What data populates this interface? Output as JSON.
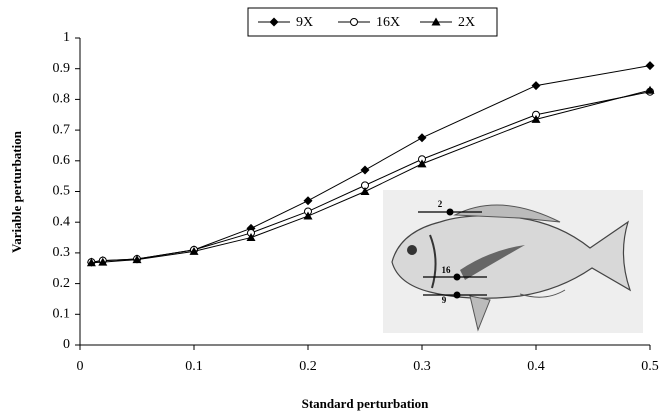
{
  "chart_data": {
    "type": "line",
    "x_label": "Standard perturbation",
    "y_label": "Variable perturbation",
    "x": [
      0.01,
      0.02,
      0.05,
      0.1,
      0.15,
      0.2,
      0.25,
      0.3,
      0.4,
      0.5
    ],
    "series": [
      {
        "name": "9X",
        "color": "#000000",
        "marker": "diamond",
        "values": [
          0.27,
          0.275,
          0.28,
          0.31,
          0.38,
          0.47,
          0.57,
          0.675,
          0.845,
          0.91
        ]
      },
      {
        "name": "16X",
        "color": "#000000",
        "marker": "circle",
        "values": [
          0.27,
          0.275,
          0.28,
          0.31,
          0.365,
          0.435,
          0.52,
          0.605,
          0.75,
          0.825
        ]
      },
      {
        "name": "2X",
        "color": "#000000",
        "marker": "triangle",
        "values": [
          0.268,
          0.27,
          0.278,
          0.305,
          0.35,
          0.42,
          0.5,
          0.59,
          0.735,
          0.83
        ]
      }
    ],
    "xlim": [
      0,
      0.5
    ],
    "xticks": [
      0,
      0.1,
      0.2,
      0.3,
      0.4,
      0.5
    ],
    "ylim": [
      0,
      1
    ],
    "yticks": [
      0,
      0.1,
      0.2,
      0.3,
      0.4,
      0.5,
      0.6,
      0.7,
      0.8,
      0.9,
      1
    ],
    "grid": false,
    "legend": "top",
    "annotations": [
      "2",
      "16",
      "9"
    ]
  }
}
